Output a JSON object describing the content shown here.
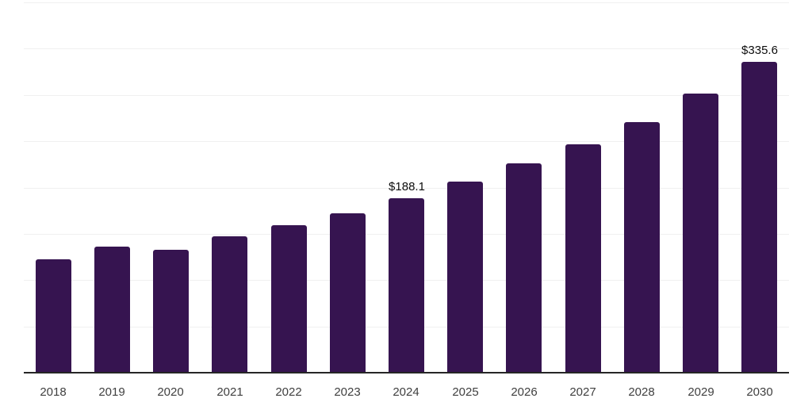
{
  "chart_data": {
    "type": "bar",
    "title": "",
    "categories": [
      "2018",
      "2019",
      "2020",
      "2021",
      "2022",
      "2023",
      "2024",
      "2025",
      "2026",
      "2027",
      "2028",
      "2029",
      "2030"
    ],
    "values": [
      122.1,
      136.2,
      132.8,
      147.3,
      159.3,
      172.2,
      188.1,
      206.4,
      225.7,
      246.7,
      270.7,
      301.5,
      335.6
    ],
    "value_labels": [
      null,
      null,
      null,
      null,
      null,
      null,
      "$188.1",
      null,
      null,
      null,
      null,
      null,
      "$335.6"
    ],
    "xlabel": "",
    "ylabel": "",
    "ylim": [
      0,
      400
    ],
    "gridline_step": 50,
    "grid": "horizontal-only",
    "legend": "none",
    "y_tick_labels_visible": false,
    "colors": {
      "bar": "#361450",
      "axis_line": "#262626",
      "gridline": "#f0f0f0",
      "tick_label": "#404040",
      "data_label": "#0d0d0d",
      "background": "#ffffff"
    }
  }
}
